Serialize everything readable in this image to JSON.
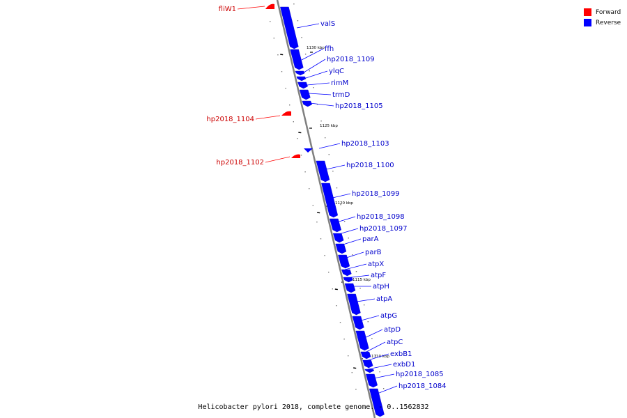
{
  "caption": "Helicobacter pylori 2018, complete genome. - 0..1562832",
  "legend": [
    {
      "label": "Forward",
      "color": "#ff0000"
    },
    {
      "label": "Reverse",
      "color": "#0000ff"
    }
  ],
  "ticks": [
    "1130 kbp",
    "1125 kbp",
    "1120 kbp",
    "1115 kbp",
    "1110 kbp"
  ],
  "forward_genes": [
    "fliW1",
    "hp2018_1104",
    "hp2018_1102"
  ],
  "reverse_genes": [
    "valS",
    "ffh",
    "hp2018_1109",
    "ylqC",
    "rimM",
    "trmD",
    "hp2018_1105",
    "hp2018_1103",
    "hp2018_1100",
    "hp2018_1099",
    "hp2018_1098",
    "hp2018_1097",
    "parA",
    "parB",
    "atpX",
    "atpF",
    "atpH",
    "atpA",
    "atpG",
    "atpD",
    "atpC",
    "exbB1",
    "exbD1",
    "hp2018_1085",
    "hp2018_1084"
  ]
}
